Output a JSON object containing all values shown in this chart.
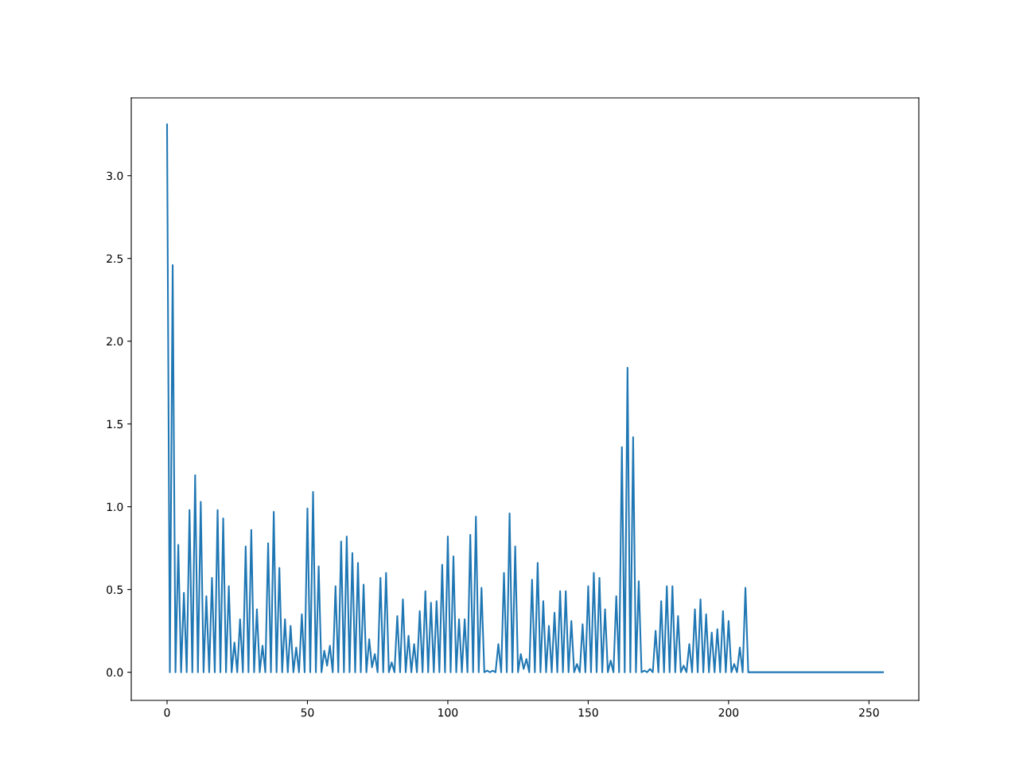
{
  "chart_data": {
    "type": "line",
    "xlim": [
      -12.75,
      267.75
    ],
    "ylim": [
      -0.17,
      3.47
    ],
    "xticks": [
      0,
      50,
      100,
      150,
      200,
      250
    ],
    "yticks": [
      {
        "value": 0,
        "label": "0.0"
      },
      {
        "value": 0.5,
        "label": "0.5"
      },
      {
        "value": 1,
        "label": "1.0"
      },
      {
        "value": 1.5,
        "label": "1.5"
      },
      {
        "value": 2,
        "label": "2.0"
      },
      {
        "value": 2.5,
        "label": "2.5"
      },
      {
        "value": 3,
        "label": "3.0"
      }
    ],
    "series": [
      {
        "color": "#1f77b4",
        "x": [
          0,
          1,
          2,
          3,
          4,
          5,
          6,
          7,
          8,
          9,
          10,
          11,
          12,
          13,
          14,
          15,
          16,
          17,
          18,
          19,
          20,
          21,
          22,
          23,
          24,
          25,
          26,
          27,
          28,
          29,
          30,
          31,
          32,
          33,
          34,
          35,
          36,
          37,
          38,
          39,
          40,
          41,
          42,
          43,
          44,
          45,
          46,
          47,
          48,
          49,
          50,
          51,
          52,
          53,
          54,
          55,
          56,
          57,
          58,
          59,
          60,
          61,
          62,
          63,
          64,
          65,
          66,
          67,
          68,
          69,
          70,
          71,
          72,
          73,
          74,
          75,
          76,
          77,
          78,
          79,
          80,
          81,
          82,
          83,
          84,
          85,
          86,
          87,
          88,
          89,
          90,
          91,
          92,
          93,
          94,
          95,
          96,
          97,
          98,
          99,
          100,
          101,
          102,
          103,
          104,
          105,
          106,
          107,
          108,
          109,
          110,
          111,
          112,
          113,
          114,
          115,
          116,
          117,
          118,
          119,
          120,
          121,
          122,
          123,
          124,
          125,
          126,
          127,
          128,
          129,
          130,
          131,
          132,
          133,
          134,
          135,
          136,
          137,
          138,
          139,
          140,
          141,
          142,
          143,
          144,
          145,
          146,
          147,
          148,
          149,
          150,
          151,
          152,
          153,
          154,
          155,
          156,
          157,
          158,
          159,
          160,
          161,
          162,
          163,
          164,
          165,
          166,
          167,
          168,
          169,
          170,
          171,
          172,
          173,
          174,
          175,
          176,
          177,
          178,
          179,
          180,
          181,
          182,
          183,
          184,
          185,
          186,
          187,
          188,
          189,
          190,
          191,
          192,
          193,
          194,
          195,
          196,
          197,
          198,
          199,
          200,
          201,
          202,
          203,
          204,
          205,
          206,
          207,
          255
        ],
        "values": [
          3.31,
          0,
          2.46,
          0,
          0.77,
          0,
          0.48,
          0,
          0.98,
          0,
          1.19,
          0,
          1.03,
          0,
          0.46,
          0,
          0.57,
          0,
          0.98,
          0,
          0.93,
          0,
          0.52,
          0,
          0.18,
          0,
          0.32,
          0,
          0.76,
          0,
          0.86,
          0,
          0.38,
          0,
          0.16,
          0,
          0.78,
          0,
          0.97,
          0,
          0.63,
          0,
          0.32,
          0,
          0.28,
          0,
          0.15,
          0,
          0.35,
          0,
          0.99,
          0,
          1.09,
          0,
          0.64,
          0,
          0.13,
          0.04,
          0.16,
          0,
          0.52,
          0,
          0.79,
          0,
          0.82,
          0,
          0.72,
          0,
          0.66,
          0,
          0.53,
          0,
          0.2,
          0.03,
          0.11,
          0,
          0.57,
          0,
          0.6,
          0,
          0.06,
          0,
          0.34,
          0,
          0.44,
          0,
          0.22,
          0,
          0.17,
          0,
          0.37,
          0,
          0.49,
          0,
          0.42,
          0,
          0.43,
          0,
          0.65,
          0,
          0.82,
          0,
          0.7,
          0,
          0.32,
          0,
          0.32,
          0,
          0.83,
          0,
          0.94,
          0,
          0.51,
          0,
          0.01,
          0,
          0.01,
          0,
          0.17,
          0,
          0.6,
          0,
          0.96,
          0,
          0.76,
          0,
          0.11,
          0.02,
          0.08,
          0,
          0.56,
          0,
          0.66,
          0,
          0.43,
          0,
          0.28,
          0,
          0.36,
          0,
          0.49,
          0,
          0.49,
          0,
          0.31,
          0,
          0.05,
          0,
          0.29,
          0,
          0.52,
          0,
          0.6,
          0,
          0.57,
          0,
          0.38,
          0,
          0.07,
          0,
          0.46,
          0,
          1.36,
          0,
          1.84,
          0,
          1.42,
          0,
          0.55,
          0,
          0.01,
          0,
          0.02,
          0,
          0.25,
          0,
          0.43,
          0,
          0.52,
          0,
          0.52,
          0,
          0.34,
          0,
          0.04,
          0,
          0.17,
          0,
          0.38,
          0,
          0.44,
          0,
          0.35,
          0,
          0.24,
          0,
          0.26,
          0,
          0.37,
          0,
          0.31,
          0,
          0.05,
          0,
          0.15,
          0,
          0.51,
          0,
          0
        ]
      }
    ]
  }
}
